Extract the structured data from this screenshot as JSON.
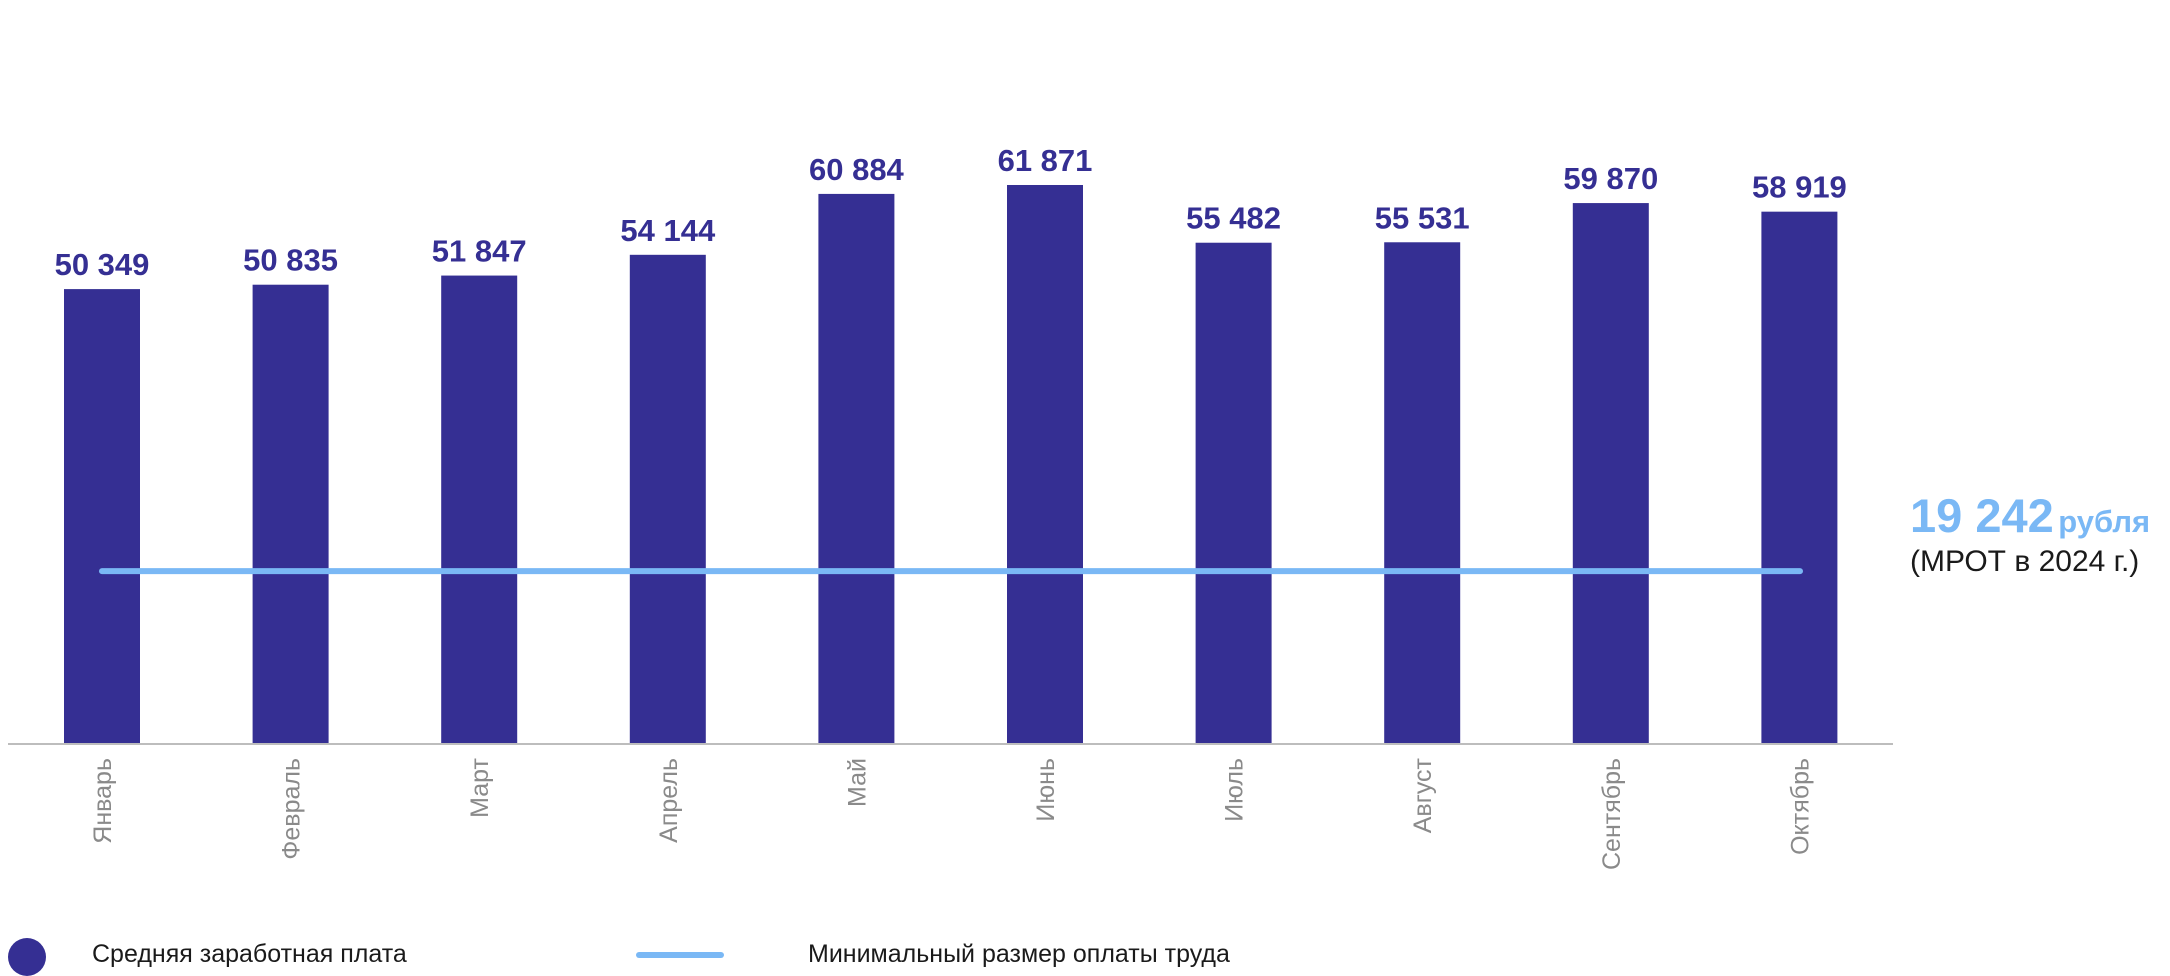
{
  "chart_data": {
    "type": "bar",
    "title": "",
    "xlabel": "",
    "ylabel": "",
    "categories": [
      "Январь",
      "Февраль",
      "Март",
      "Апрель",
      "Май",
      "Июнь",
      "Июль",
      "Август",
      "Сентябрь",
      "Октябрь"
    ],
    "series": [
      {
        "name": "Средняя заработная плата",
        "color": "#352f93",
        "values": [
          50349,
          50835,
          51847,
          54144,
          60884,
          61871,
          55482,
          55531,
          59870,
          58919
        ],
        "value_labels": [
          "50 349",
          "50 835",
          "51 847",
          "54 144",
          "60 884",
          "61 871",
          "55 482",
          "55 531",
          "59 870",
          "58 919"
        ]
      }
    ],
    "reference_line": {
      "name": "Минимальный размер оплаты труда",
      "value": 19242,
      "color": "#7ab8f5",
      "value_text": "19 242",
      "unit_text": "рубля",
      "caption": "(МРОТ в 2024 г.)"
    },
    "ylim": [
      0,
      62000
    ],
    "grid": false,
    "legend_position": "bottom"
  }
}
